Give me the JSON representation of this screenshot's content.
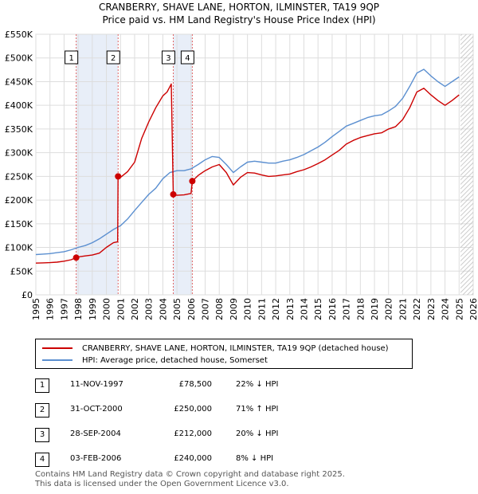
{
  "chart_data": {
    "type": "line",
    "title": "CRANBERRY, SHAVE LANE, HORTON, ILMINSTER, TA19 9QP",
    "subtitle": "Price paid vs. HM Land Registry's House Price Index (HPI)",
    "xlim": [
      1995,
      2026
    ],
    "ylim": [
      0,
      550000
    ],
    "y_ticks": [
      0,
      50000,
      100000,
      150000,
      200000,
      250000,
      300000,
      350000,
      400000,
      450000,
      500000,
      550000
    ],
    "y_tick_labels": [
      "£0",
      "£50K",
      "£100K",
      "£150K",
      "£200K",
      "£250K",
      "£300K",
      "£350K",
      "£400K",
      "£450K",
      "£500K",
      "£550K"
    ],
    "x_ticks": [
      1995,
      1996,
      1997,
      1998,
      1999,
      2000,
      2001,
      2002,
      2003,
      2004,
      2005,
      2006,
      2007,
      2008,
      2009,
      2010,
      2011,
      2012,
      2013,
      2014,
      2015,
      2016,
      2017,
      2018,
      2019,
      2020,
      2021,
      2022,
      2023,
      2024,
      2025,
      2026
    ],
    "x_tick_labels": [
      "1995",
      "1996",
      "1997",
      "1998",
      "1999",
      "2000",
      "2001",
      "2002",
      "2003",
      "2004",
      "2005",
      "2006",
      "2007",
      "2008",
      "2009",
      "2010",
      "2011",
      "2012",
      "2013",
      "2014",
      "2015",
      "2016",
      "2017",
      "2018",
      "2019",
      "2020",
      "2021",
      "2022",
      "2023",
      "2024",
      "2025",
      "2026"
    ],
    "grid": true,
    "future_hatch_start": 2025.1,
    "sale_bands": [
      [
        1997.86,
        2000.83
      ],
      [
        2004.74,
        2006.09
      ]
    ],
    "series": [
      {
        "name": "CRANBERRY, SHAVE LANE, HORTON, ILMINSTER, TA19 9QP (detached house)",
        "color": "#cc0000",
        "x": [
          1995.0,
          1995.5,
          1996.0,
          1996.5,
          1997.0,
          1997.5,
          1997.86,
          1998.0,
          1998.5,
          1999.0,
          1999.5,
          2000.0,
          2000.5,
          2000.8,
          2000.83,
          2001.0,
          2001.5,
          2002.0,
          2002.5,
          2003.0,
          2003.5,
          2004.0,
          2004.3,
          2004.6,
          2004.74,
          2005.0,
          2005.5,
          2006.0,
          2006.09,
          2006.5,
          2007.0,
          2007.5,
          2008.0,
          2008.5,
          2009.0,
          2009.5,
          2010.0,
          2010.5,
          2011.0,
          2011.5,
          2012.0,
          2012.5,
          2013.0,
          2013.5,
          2014.0,
          2014.5,
          2015.0,
          2015.5,
          2016.0,
          2016.5,
          2017.0,
          2017.5,
          2018.0,
          2018.5,
          2019.0,
          2019.5,
          2020.0,
          2020.5,
          2021.0,
          2021.5,
          2022.0,
          2022.5,
          2023.0,
          2023.5,
          2024.0,
          2024.5,
          2025.0
        ],
        "values": [
          67000,
          67500,
          68000,
          69000,
          71000,
          74000,
          78500,
          80000,
          82000,
          84000,
          88000,
          100000,
          110000,
          112000,
          250000,
          248000,
          260000,
          280000,
          330000,
          365000,
          395000,
          420000,
          428000,
          445000,
          212000,
          210000,
          211000,
          214000,
          240000,
          252000,
          262000,
          270000,
          275000,
          258000,
          232000,
          248000,
          258000,
          257000,
          253000,
          250000,
          251000,
          253000,
          255000,
          260000,
          264000,
          270000,
          277000,
          285000,
          295000,
          305000,
          318000,
          326000,
          332000,
          336000,
          340000,
          342000,
          350000,
          355000,
          370000,
          395000,
          428000,
          436000,
          422000,
          410000,
          400000,
          410000,
          422000
        ]
      },
      {
        "name": "HPI: Average price, detached house, Somerset",
        "color": "#5b8fd0",
        "x": [
          1995.0,
          1995.5,
          1996.0,
          1996.5,
          1997.0,
          1997.5,
          1998.0,
          1998.5,
          1999.0,
          1999.5,
          2000.0,
          2000.5,
          2001.0,
          2001.5,
          2002.0,
          2002.5,
          2003.0,
          2003.5,
          2004.0,
          2004.5,
          2005.0,
          2005.5,
          2006.0,
          2006.5,
          2007.0,
          2007.5,
          2008.0,
          2008.5,
          2009.0,
          2009.5,
          2010.0,
          2010.5,
          2011.0,
          2011.5,
          2012.0,
          2012.5,
          2013.0,
          2013.5,
          2014.0,
          2014.5,
          2015.0,
          2015.5,
          2016.0,
          2016.5,
          2017.0,
          2017.5,
          2018.0,
          2018.5,
          2019.0,
          2019.5,
          2020.0,
          2020.5,
          2021.0,
          2021.5,
          2022.0,
          2022.5,
          2023.0,
          2023.5,
          2024.0,
          2024.5,
          2025.0
        ],
        "values": [
          85000,
          86000,
          87000,
          89000,
          91000,
          95000,
          100000,
          104000,
          110000,
          118000,
          128000,
          138000,
          146000,
          160000,
          178000,
          195000,
          212000,
          225000,
          245000,
          258000,
          262000,
          262000,
          266000,
          275000,
          285000,
          292000,
          290000,
          275000,
          258000,
          270000,
          280000,
          282000,
          280000,
          278000,
          278000,
          282000,
          285000,
          290000,
          296000,
          304000,
          312000,
          322000,
          334000,
          345000,
          356000,
          362000,
          368000,
          374000,
          378000,
          380000,
          388000,
          398000,
          415000,
          440000,
          468000,
          476000,
          462000,
          450000,
          440000,
          450000,
          460000
        ]
      }
    ],
    "markers": [
      {
        "label": "1",
        "x": 1997.86,
        "y": 78500
      },
      {
        "label": "2",
        "x": 2000.83,
        "y": 250000
      },
      {
        "label": "3",
        "x": 2004.74,
        "y": 212000
      },
      {
        "label": "4",
        "x": 2006.09,
        "y": 240000
      }
    ]
  },
  "legend": [
    {
      "label": "CRANBERRY, SHAVE LANE, HORTON, ILMINSTER, TA19 9QP (detached house)",
      "color": "#cc0000"
    },
    {
      "label": "HPI: Average price, detached house, Somerset",
      "color": "#5b8fd0"
    }
  ],
  "transactions": [
    {
      "num": "1",
      "date": "11-NOV-1997",
      "price": "£78,500",
      "hpi": "22% ↓ HPI"
    },
    {
      "num": "2",
      "date": "31-OCT-2000",
      "price": "£250,000",
      "hpi": "71% ↑ HPI"
    },
    {
      "num": "3",
      "date": "28-SEP-2004",
      "price": "£212,000",
      "hpi": "20% ↓ HPI"
    },
    {
      "num": "4",
      "date": "03-FEB-2006",
      "price": "£240,000",
      "hpi": "8% ↓ HPI"
    }
  ],
  "footer": {
    "line1": "Contains HM Land Registry data © Crown copyright and database right 2025.",
    "line2": "This data is licensed under the Open Government Licence v3.0."
  }
}
